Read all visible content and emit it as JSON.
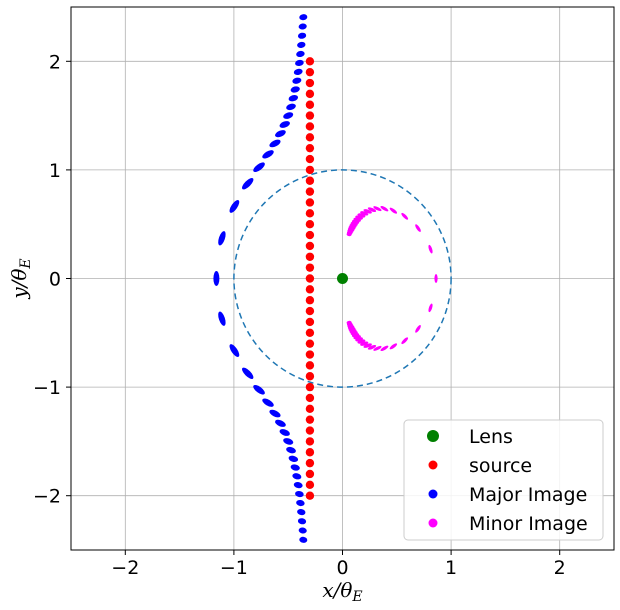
{
  "chart_data": {
    "type": "scatter",
    "title": "",
    "xlabel": "x/θ_E",
    "ylabel": "y/θ_E",
    "xlabel_parts": {
      "main": "x/θ",
      "sub": "E"
    },
    "ylabel_parts": {
      "main": "y/θ",
      "sub": "E"
    },
    "xlim": [
      -2.5,
      2.5
    ],
    "ylim": [
      -2.5,
      2.5
    ],
    "xticks": [
      -2,
      -1,
      0,
      1,
      2
    ],
    "yticks": [
      -2,
      -1,
      0,
      1,
      2
    ],
    "xtick_labels": [
      "−2",
      "−1",
      "0",
      "1",
      "2"
    ],
    "ytick_labels": [
      "−2",
      "−1",
      "0",
      "1",
      "2"
    ],
    "grid": true,
    "legend_position": "lower-right",
    "einstein_ring": {
      "radius": 1.0,
      "style": "dashed",
      "color": "#1f77b4"
    },
    "source_x": -0.3,
    "source_y_start": -2.0,
    "source_y_end": 2.0,
    "source_count": 41,
    "series": [
      {
        "name": "Lens",
        "color": "#008000",
        "marker": "circle",
        "x": [
          0
        ],
        "y": [
          0
        ]
      },
      {
        "name": "source",
        "color": "#ff0000",
        "marker": "circle"
      },
      {
        "name": "Major Image",
        "color": "#0000ff",
        "marker": "ellipse"
      },
      {
        "name": "Minor Image",
        "color": "#ff00ff",
        "marker": "ellipse"
      }
    ]
  }
}
